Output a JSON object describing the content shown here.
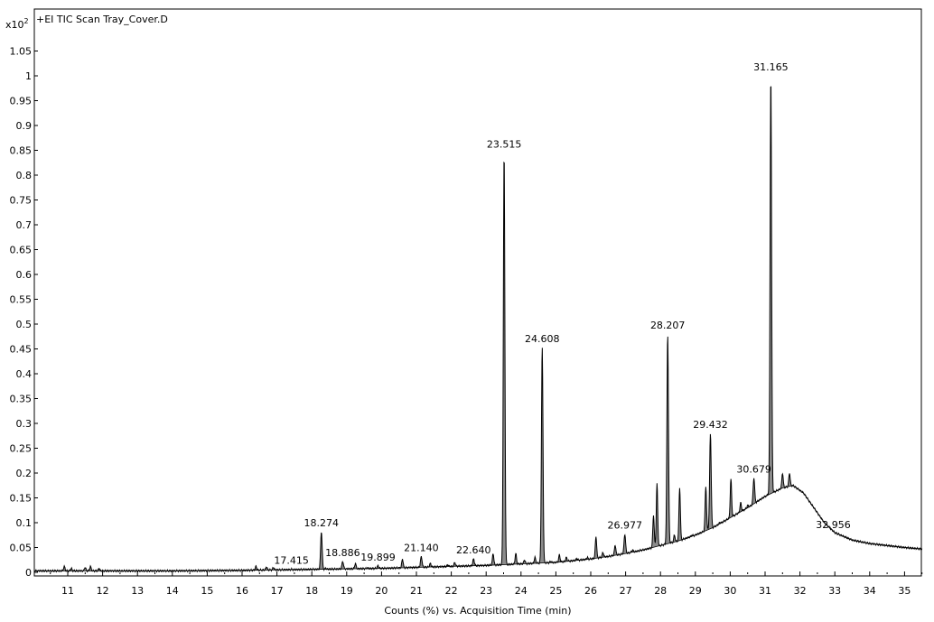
{
  "chart_data": {
    "type": "line",
    "title": "+EI TIC Scan Tray_Cover.D",
    "y_multiplier": "x10",
    "y_multiplier_exp": "2",
    "xlabel": "Counts (%) vs. Acquisition Time (min)",
    "ylabel": "",
    "xlim": [
      10.05,
      35.5
    ],
    "ylim": [
      0,
      1.1
    ],
    "grid": false,
    "x_ticks": [
      "11",
      "12",
      "13",
      "14",
      "15",
      "16",
      "17",
      "18",
      "19",
      "20",
      "21",
      "22",
      "23",
      "24",
      "25",
      "26",
      "27",
      "28",
      "29",
      "30",
      "31",
      "32",
      "33",
      "34",
      "35"
    ],
    "y_ticks": [
      "0",
      "0.05",
      "0.1",
      "0.15",
      "0.2",
      "0.25",
      "0.3",
      "0.35",
      "0.4",
      "0.45",
      "0.5",
      "0.55",
      "0.6",
      "0.65",
      "0.7",
      "0.75",
      "0.8",
      "0.85",
      "0.9",
      "0.95",
      "1",
      "1.05"
    ],
    "labeled_peaks": [
      {
        "label": "17.415",
        "x": 17.415,
        "y": 0.006
      },
      {
        "label": "18.274",
        "x": 18.274,
        "y": 0.082
      },
      {
        "label": "18.886",
        "x": 18.886,
        "y": 0.022
      },
      {
        "label": "19.899",
        "x": 19.899,
        "y": 0.013
      },
      {
        "label": "21.140",
        "x": 21.14,
        "y": 0.032
      },
      {
        "label": "22.640",
        "x": 22.64,
        "y": 0.027
      },
      {
        "label": "23.515",
        "x": 23.515,
        "y": 0.845
      },
      {
        "label": "24.608",
        "x": 24.608,
        "y": 0.453
      },
      {
        "label": "26.977",
        "x": 26.977,
        "y": 0.077
      },
      {
        "label": "28.207",
        "x": 28.207,
        "y": 0.48
      },
      {
        "label": "29.432",
        "x": 29.432,
        "y": 0.28
      },
      {
        "label": "30.679",
        "x": 30.679,
        "y": 0.19
      },
      {
        "label": "31.165",
        "x": 31.165,
        "y": 1.0
      },
      {
        "label": "32.956",
        "x": 32.956,
        "y": 0.078
      }
    ],
    "minor_peaks": [
      {
        "x": 10.9,
        "y": 0.012
      },
      {
        "x": 11.1,
        "y": 0.008
      },
      {
        "x": 11.5,
        "y": 0.01
      },
      {
        "x": 11.65,
        "y": 0.012
      },
      {
        "x": 11.9,
        "y": 0.008
      },
      {
        "x": 16.4,
        "y": 0.012
      },
      {
        "x": 16.7,
        "y": 0.011
      },
      {
        "x": 16.9,
        "y": 0.01
      },
      {
        "x": 18.4,
        "y": 0.008
      },
      {
        "x": 19.25,
        "y": 0.018
      },
      {
        "x": 19.6,
        "y": 0.009
      },
      {
        "x": 20.6,
        "y": 0.027
      },
      {
        "x": 20.8,
        "y": 0.01
      },
      {
        "x": 21.4,
        "y": 0.018
      },
      {
        "x": 21.9,
        "y": 0.015
      },
      {
        "x": 22.1,
        "y": 0.02
      },
      {
        "x": 22.9,
        "y": 0.013
      },
      {
        "x": 23.2,
        "y": 0.038
      },
      {
        "x": 23.85,
        "y": 0.038
      },
      {
        "x": 24.1,
        "y": 0.025
      },
      {
        "x": 24.4,
        "y": 0.03
      },
      {
        "x": 24.85,
        "y": 0.022
      },
      {
        "x": 25.1,
        "y": 0.035
      },
      {
        "x": 25.3,
        "y": 0.03
      },
      {
        "x": 25.6,
        "y": 0.028
      },
      {
        "x": 25.9,
        "y": 0.03
      },
      {
        "x": 26.15,
        "y": 0.072
      },
      {
        "x": 26.35,
        "y": 0.04
      },
      {
        "x": 26.7,
        "y": 0.055
      },
      {
        "x": 27.2,
        "y": 0.045
      },
      {
        "x": 27.45,
        "y": 0.045
      },
      {
        "x": 27.8,
        "y": 0.115
      },
      {
        "x": 27.9,
        "y": 0.178
      },
      {
        "x": 28.4,
        "y": 0.075
      },
      {
        "x": 28.55,
        "y": 0.17
      },
      {
        "x": 28.9,
        "y": 0.075
      },
      {
        "x": 29.3,
        "y": 0.173
      },
      {
        "x": 29.7,
        "y": 0.1
      },
      {
        "x": 30.02,
        "y": 0.188
      },
      {
        "x": 30.3,
        "y": 0.14
      },
      {
        "x": 30.5,
        "y": 0.135
      },
      {
        "x": 31.5,
        "y": 0.2
      },
      {
        "x": 31.7,
        "y": 0.2
      },
      {
        "x": 33.4,
        "y": 0.065
      }
    ],
    "baseline": [
      [
        10.05,
        0.003
      ],
      [
        12,
        0.003
      ],
      [
        14,
        0.003
      ],
      [
        16,
        0.004
      ],
      [
        17,
        0.005
      ],
      [
        18,
        0.006
      ],
      [
        19,
        0.007
      ],
      [
        20,
        0.008
      ],
      [
        21,
        0.01
      ],
      [
        22,
        0.012
      ],
      [
        23,
        0.014
      ],
      [
        24,
        0.017
      ],
      [
        25,
        0.02
      ],
      [
        26,
        0.027
      ],
      [
        26.5,
        0.032
      ],
      [
        27,
        0.038
      ],
      [
        27.5,
        0.045
      ],
      [
        28,
        0.054
      ],
      [
        28.5,
        0.063
      ],
      [
        29,
        0.075
      ],
      [
        29.5,
        0.09
      ],
      [
        30,
        0.11
      ],
      [
        30.5,
        0.13
      ],
      [
        31,
        0.153
      ],
      [
        31.5,
        0.17
      ],
      [
        31.8,
        0.175
      ],
      [
        32.1,
        0.16
      ],
      [
        32.4,
        0.13
      ],
      [
        32.7,
        0.1
      ],
      [
        33,
        0.08
      ],
      [
        33.5,
        0.065
      ],
      [
        34,
        0.058
      ],
      [
        34.5,
        0.054
      ],
      [
        35,
        0.05
      ],
      [
        35.5,
        0.047
      ]
    ]
  }
}
